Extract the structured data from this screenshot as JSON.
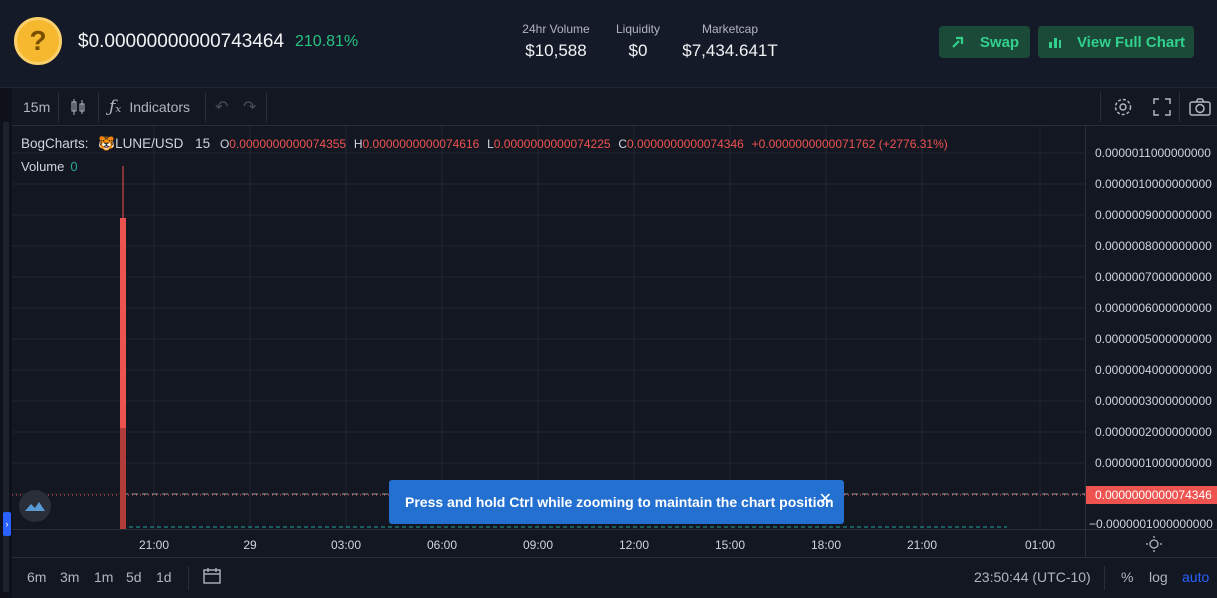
{
  "header": {
    "token_icon_glyph": "?",
    "price": "$0.00000000000743464",
    "change": "210.81%",
    "stats": [
      {
        "label": "24hr Volume",
        "value": "$10,588"
      },
      {
        "label": "Liquidity",
        "value": "$0"
      },
      {
        "label": "Marketcap",
        "value": "$7,434.641T"
      }
    ],
    "swap_label": "Swap",
    "full_chart_label": "View Full Chart"
  },
  "toolbar": {
    "interval": "15m",
    "indicators_label": "Indicators"
  },
  "legend": {
    "source": "BogCharts:",
    "pair": "LUNE/USD",
    "interval": "15",
    "o_label": "O",
    "o_value": "0.0000000000074355",
    "h_label": "H",
    "h_value": "0.0000000000074616",
    "l_label": "L",
    "l_value": "0.0000000000074225",
    "c_label": "C",
    "c_value": "0.0000000000074346",
    "delta": "+0.0000000000071762 (+2776.31%)",
    "volume_label": "Volume",
    "volume_value": "0"
  },
  "yaxis": {
    "ticks": [
      "0.0000011000000000",
      "0.0000010000000000",
      "0.0000009000000000",
      "0.0000008000000000",
      "0.0000007000000000",
      "0.0000006000000000",
      "0.0000005000000000",
      "0.0000004000000000",
      "0.0000003000000000",
      "0.0000002000000000",
      "0.0000001000000000",
      "−0.0000001000000000"
    ],
    "current_tag": "0.0000000000074346"
  },
  "xaxis": {
    "ticks": [
      "21:00",
      "29",
      "03:00",
      "06:00",
      "09:00",
      "12:00",
      "15:00",
      "18:00",
      "21:00",
      "01:00"
    ]
  },
  "toast": {
    "message": "Press and hold Ctrl while zooming to maintain the chart position"
  },
  "bottombar": {
    "ranges": [
      "6m",
      "3m",
      "1m",
      "5d",
      "1d"
    ],
    "clock": "23:50:44 (UTC-10)",
    "percent_label": "%",
    "log_label": "log",
    "auto_label": "auto"
  },
  "colors": {
    "accent_green": "#31d08c",
    "candle_red": "#ef5350",
    "toast_blue": "#2370d1",
    "auto_blue": "#2962ff"
  }
}
